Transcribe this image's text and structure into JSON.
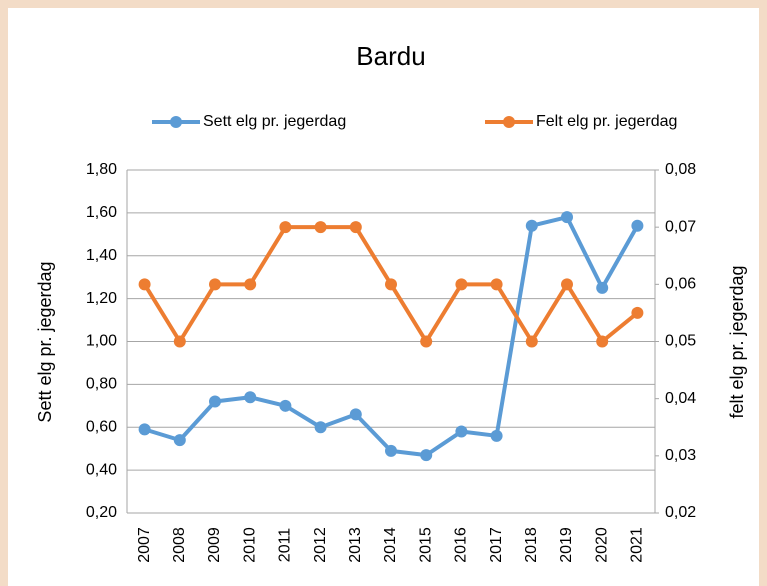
{
  "chart_data": {
    "type": "line",
    "title": "Bardu",
    "categories": [
      "2007",
      "2008",
      "2009",
      "2010",
      "2011",
      "2012",
      "2013",
      "2014",
      "2015",
      "2016",
      "2017",
      "2018",
      "2019",
      "2020",
      "2021"
    ],
    "series": [
      {
        "name": "Sett elg pr. jegerdag",
        "color": "#5b9bd5",
        "values": [
          0.59,
          0.54,
          0.72,
          0.74,
          0.7,
          0.6,
          0.66,
          0.49,
          0.47,
          0.58,
          0.56,
          1.54,
          1.58,
          1.25,
          1.54
        ]
      },
      {
        "name": "Felt elg pr. jegerdag",
        "color": "#ed7d31",
        "axis": "y2",
        "values": [
          0.06,
          0.05,
          0.06,
          0.06,
          0.07,
          0.07,
          0.07,
          0.06,
          0.05,
          0.06,
          0.06,
          0.05,
          0.06,
          0.05,
          0.055
        ]
      }
    ],
    "ylabel": "Sett elg pr. jegerdag",
    "y2label": "felt elg pr. jegerdag",
    "ylim": [
      0.2,
      1.8
    ],
    "yticks": [
      {
        "value": 0.2,
        "label": "0,20"
      },
      {
        "value": 0.4,
        "label": "0,40"
      },
      {
        "value": 0.6,
        "label": "0,60"
      },
      {
        "value": 0.8,
        "label": "0,80"
      },
      {
        "value": 1.0,
        "label": "1,00"
      },
      {
        "value": 1.2,
        "label": "1,20"
      },
      {
        "value": 1.4,
        "label": "1,40"
      },
      {
        "value": 1.6,
        "label": "1,60"
      },
      {
        "value": 1.8,
        "label": "1,80"
      }
    ],
    "y2lim": [
      0.02,
      0.08
    ],
    "y2ticks": [
      {
        "value": 0.02,
        "label": "0,02"
      },
      {
        "value": 0.03,
        "label": "0,03"
      },
      {
        "value": 0.04,
        "label": "0,04"
      },
      {
        "value": 0.05,
        "label": "0,05"
      },
      {
        "value": 0.06,
        "label": "0,06"
      },
      {
        "value": 0.07,
        "label": "0,07"
      },
      {
        "value": 0.08,
        "label": "0,08"
      }
    ],
    "grid": true,
    "legend": "top"
  }
}
